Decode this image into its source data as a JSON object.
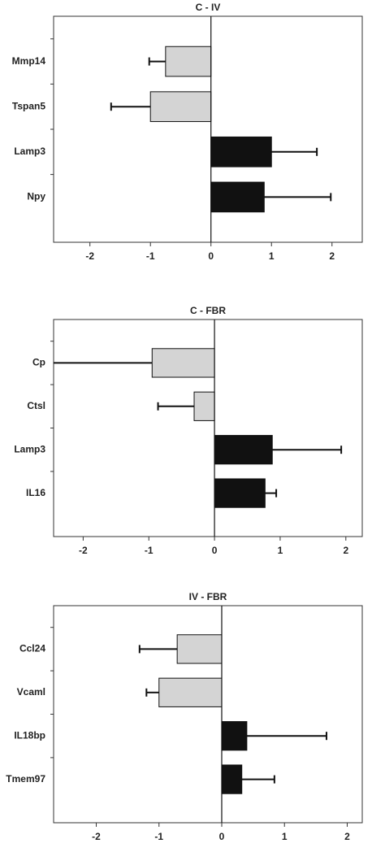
{
  "chart_data": [
    {
      "type": "bar",
      "title": "C - IV",
      "categories": [
        "Mmp14",
        "Tspan5",
        "Lamp3",
        "Npy"
      ],
      "values": [
        -0.75,
        -1.0,
        1.0,
        0.88
      ],
      "errors": [
        0.27,
        0.65,
        0.75,
        1.1
      ],
      "colors": [
        "#d4d4d4",
        "#d4d4d4",
        "#111111",
        "#111111"
      ],
      "xlim": [
        -2.6,
        2.5
      ],
      "xticks": [
        -2,
        -1,
        0,
        1,
        2
      ]
    },
    {
      "type": "bar",
      "title": "C - FBR",
      "categories": [
        "Cp",
        "Ctsl",
        "Lamp3",
        "IL16"
      ],
      "values": [
        -0.95,
        -0.31,
        0.88,
        0.77
      ],
      "errors": [
        1.6,
        0.55,
        1.05,
        0.17
      ],
      "colors": [
        "#d4d4d4",
        "#d4d4d4",
        "#111111",
        "#111111"
      ],
      "xlim": [
        -2.45,
        2.25
      ],
      "xticks": [
        -2,
        -1,
        0,
        1,
        2
      ]
    },
    {
      "type": "bar",
      "title": "IV - FBR",
      "categories": [
        "Ccl24",
        "Vcaml",
        "IL18bp",
        "Tmem97"
      ],
      "values": [
        -0.71,
        -1.0,
        0.4,
        0.32
      ],
      "errors": [
        0.6,
        0.2,
        1.27,
        0.52
      ],
      "colors": [
        "#d4d4d4",
        "#d4d4d4",
        "#111111",
        "#111111"
      ],
      "xlim": [
        -2.68,
        2.24
      ],
      "xticks": [
        -2,
        -1,
        0,
        1,
        2
      ]
    }
  ]
}
